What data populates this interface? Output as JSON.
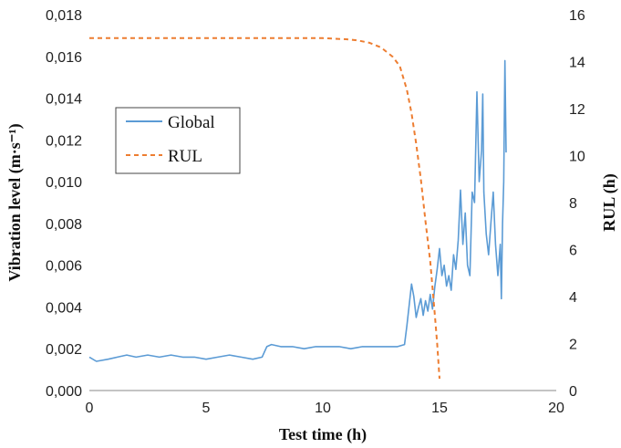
{
  "chart_data": {
    "type": "line",
    "xlabel": "Test time (h)",
    "ylabel_left": "Vibration level (m·s⁻¹)",
    "ylabel_right": "RUL (h)",
    "xlim": [
      0,
      20
    ],
    "ylim_left": [
      0,
      0.018
    ],
    "ylim_right": [
      0,
      16
    ],
    "x_ticks": [
      "0",
      "5",
      "10",
      "15",
      "20"
    ],
    "y_left_ticks": [
      "0,000",
      "0,002",
      "0,004",
      "0,006",
      "0,008",
      "0,010",
      "0,012",
      "0,014",
      "0,016",
      "0,018"
    ],
    "y_right_ticks": [
      "0",
      "2",
      "4",
      "6",
      "8",
      "10",
      "12",
      "14",
      "16"
    ],
    "grid": false,
    "legend_position": "upper-left",
    "legend": [
      "Global",
      "RUL"
    ],
    "series": [
      {
        "name": "Global",
        "axis": "left",
        "color": "#5b9bd5",
        "style": "solid",
        "points": [
          [
            0.0,
            0.0016
          ],
          [
            0.3,
            0.0014
          ],
          [
            0.8,
            0.0015
          ],
          [
            1.2,
            0.0016
          ],
          [
            1.6,
            0.0017
          ],
          [
            2.0,
            0.0016
          ],
          [
            2.5,
            0.0017
          ],
          [
            3.0,
            0.0016
          ],
          [
            3.5,
            0.0017
          ],
          [
            4.0,
            0.0016
          ],
          [
            4.5,
            0.0016
          ],
          [
            5.0,
            0.0015
          ],
          [
            5.5,
            0.0016
          ],
          [
            6.0,
            0.0017
          ],
          [
            6.5,
            0.0016
          ],
          [
            7.0,
            0.0015
          ],
          [
            7.4,
            0.0016
          ],
          [
            7.6,
            0.0021
          ],
          [
            7.8,
            0.0022
          ],
          [
            8.2,
            0.0021
          ],
          [
            8.7,
            0.0021
          ],
          [
            9.2,
            0.002
          ],
          [
            9.7,
            0.0021
          ],
          [
            10.2,
            0.0021
          ],
          [
            10.7,
            0.0021
          ],
          [
            11.2,
            0.002
          ],
          [
            11.7,
            0.0021
          ],
          [
            12.2,
            0.0021
          ],
          [
            12.7,
            0.0021
          ],
          [
            13.2,
            0.0021
          ],
          [
            13.5,
            0.0022
          ],
          [
            13.6,
            0.0031
          ],
          [
            13.8,
            0.0051
          ],
          [
            13.9,
            0.0045
          ],
          [
            14.0,
            0.0035
          ],
          [
            14.1,
            0.004
          ],
          [
            14.2,
            0.0044
          ],
          [
            14.3,
            0.0036
          ],
          [
            14.4,
            0.0043
          ],
          [
            14.5,
            0.0038
          ],
          [
            14.6,
            0.0046
          ],
          [
            14.7,
            0.0039
          ],
          [
            14.8,
            0.005
          ],
          [
            14.9,
            0.0058
          ],
          [
            15.0,
            0.0068
          ],
          [
            15.1,
            0.0055
          ],
          [
            15.2,
            0.006
          ],
          [
            15.3,
            0.005
          ],
          [
            15.4,
            0.0055
          ],
          [
            15.5,
            0.0048
          ],
          [
            15.6,
            0.0065
          ],
          [
            15.7,
            0.0058
          ],
          [
            15.8,
            0.0072
          ],
          [
            15.9,
            0.0096
          ],
          [
            16.0,
            0.007
          ],
          [
            16.1,
            0.0085
          ],
          [
            16.2,
            0.006
          ],
          [
            16.3,
            0.0055
          ],
          [
            16.4,
            0.0095
          ],
          [
            16.5,
            0.009
          ],
          [
            16.6,
            0.0143
          ],
          [
            16.7,
            0.01
          ],
          [
            16.8,
            0.0115
          ],
          [
            16.85,
            0.0142
          ],
          [
            16.9,
            0.0095
          ],
          [
            17.0,
            0.0075
          ],
          [
            17.1,
            0.0065
          ],
          [
            17.2,
            0.008
          ],
          [
            17.3,
            0.0095
          ],
          [
            17.4,
            0.007
          ],
          [
            17.5,
            0.0055
          ],
          [
            17.6,
            0.007
          ],
          [
            17.65,
            0.0044
          ],
          [
            17.7,
            0.008
          ],
          [
            17.75,
            0.01
          ],
          [
            17.8,
            0.0158
          ],
          [
            17.85,
            0.0114
          ]
        ]
      },
      {
        "name": "RUL",
        "axis": "right",
        "color": "#ed7d31",
        "style": "dashed",
        "points": [
          [
            0.0,
            15.0
          ],
          [
            2.0,
            15.0
          ],
          [
            4.0,
            15.0
          ],
          [
            6.0,
            15.0
          ],
          [
            8.0,
            15.0
          ],
          [
            10.0,
            15.0
          ],
          [
            11.0,
            14.95
          ],
          [
            11.5,
            14.9
          ],
          [
            12.0,
            14.8
          ],
          [
            12.5,
            14.6
          ],
          [
            13.0,
            14.2
          ],
          [
            13.3,
            13.8
          ],
          [
            13.6,
            12.8
          ],
          [
            13.8,
            11.8
          ],
          [
            14.0,
            10.5
          ],
          [
            14.2,
            9.0
          ],
          [
            14.4,
            7.2
          ],
          [
            14.6,
            5.5
          ],
          [
            14.8,
            3.2
          ],
          [
            14.9,
            2.0
          ],
          [
            15.0,
            0.5
          ]
        ]
      }
    ]
  }
}
